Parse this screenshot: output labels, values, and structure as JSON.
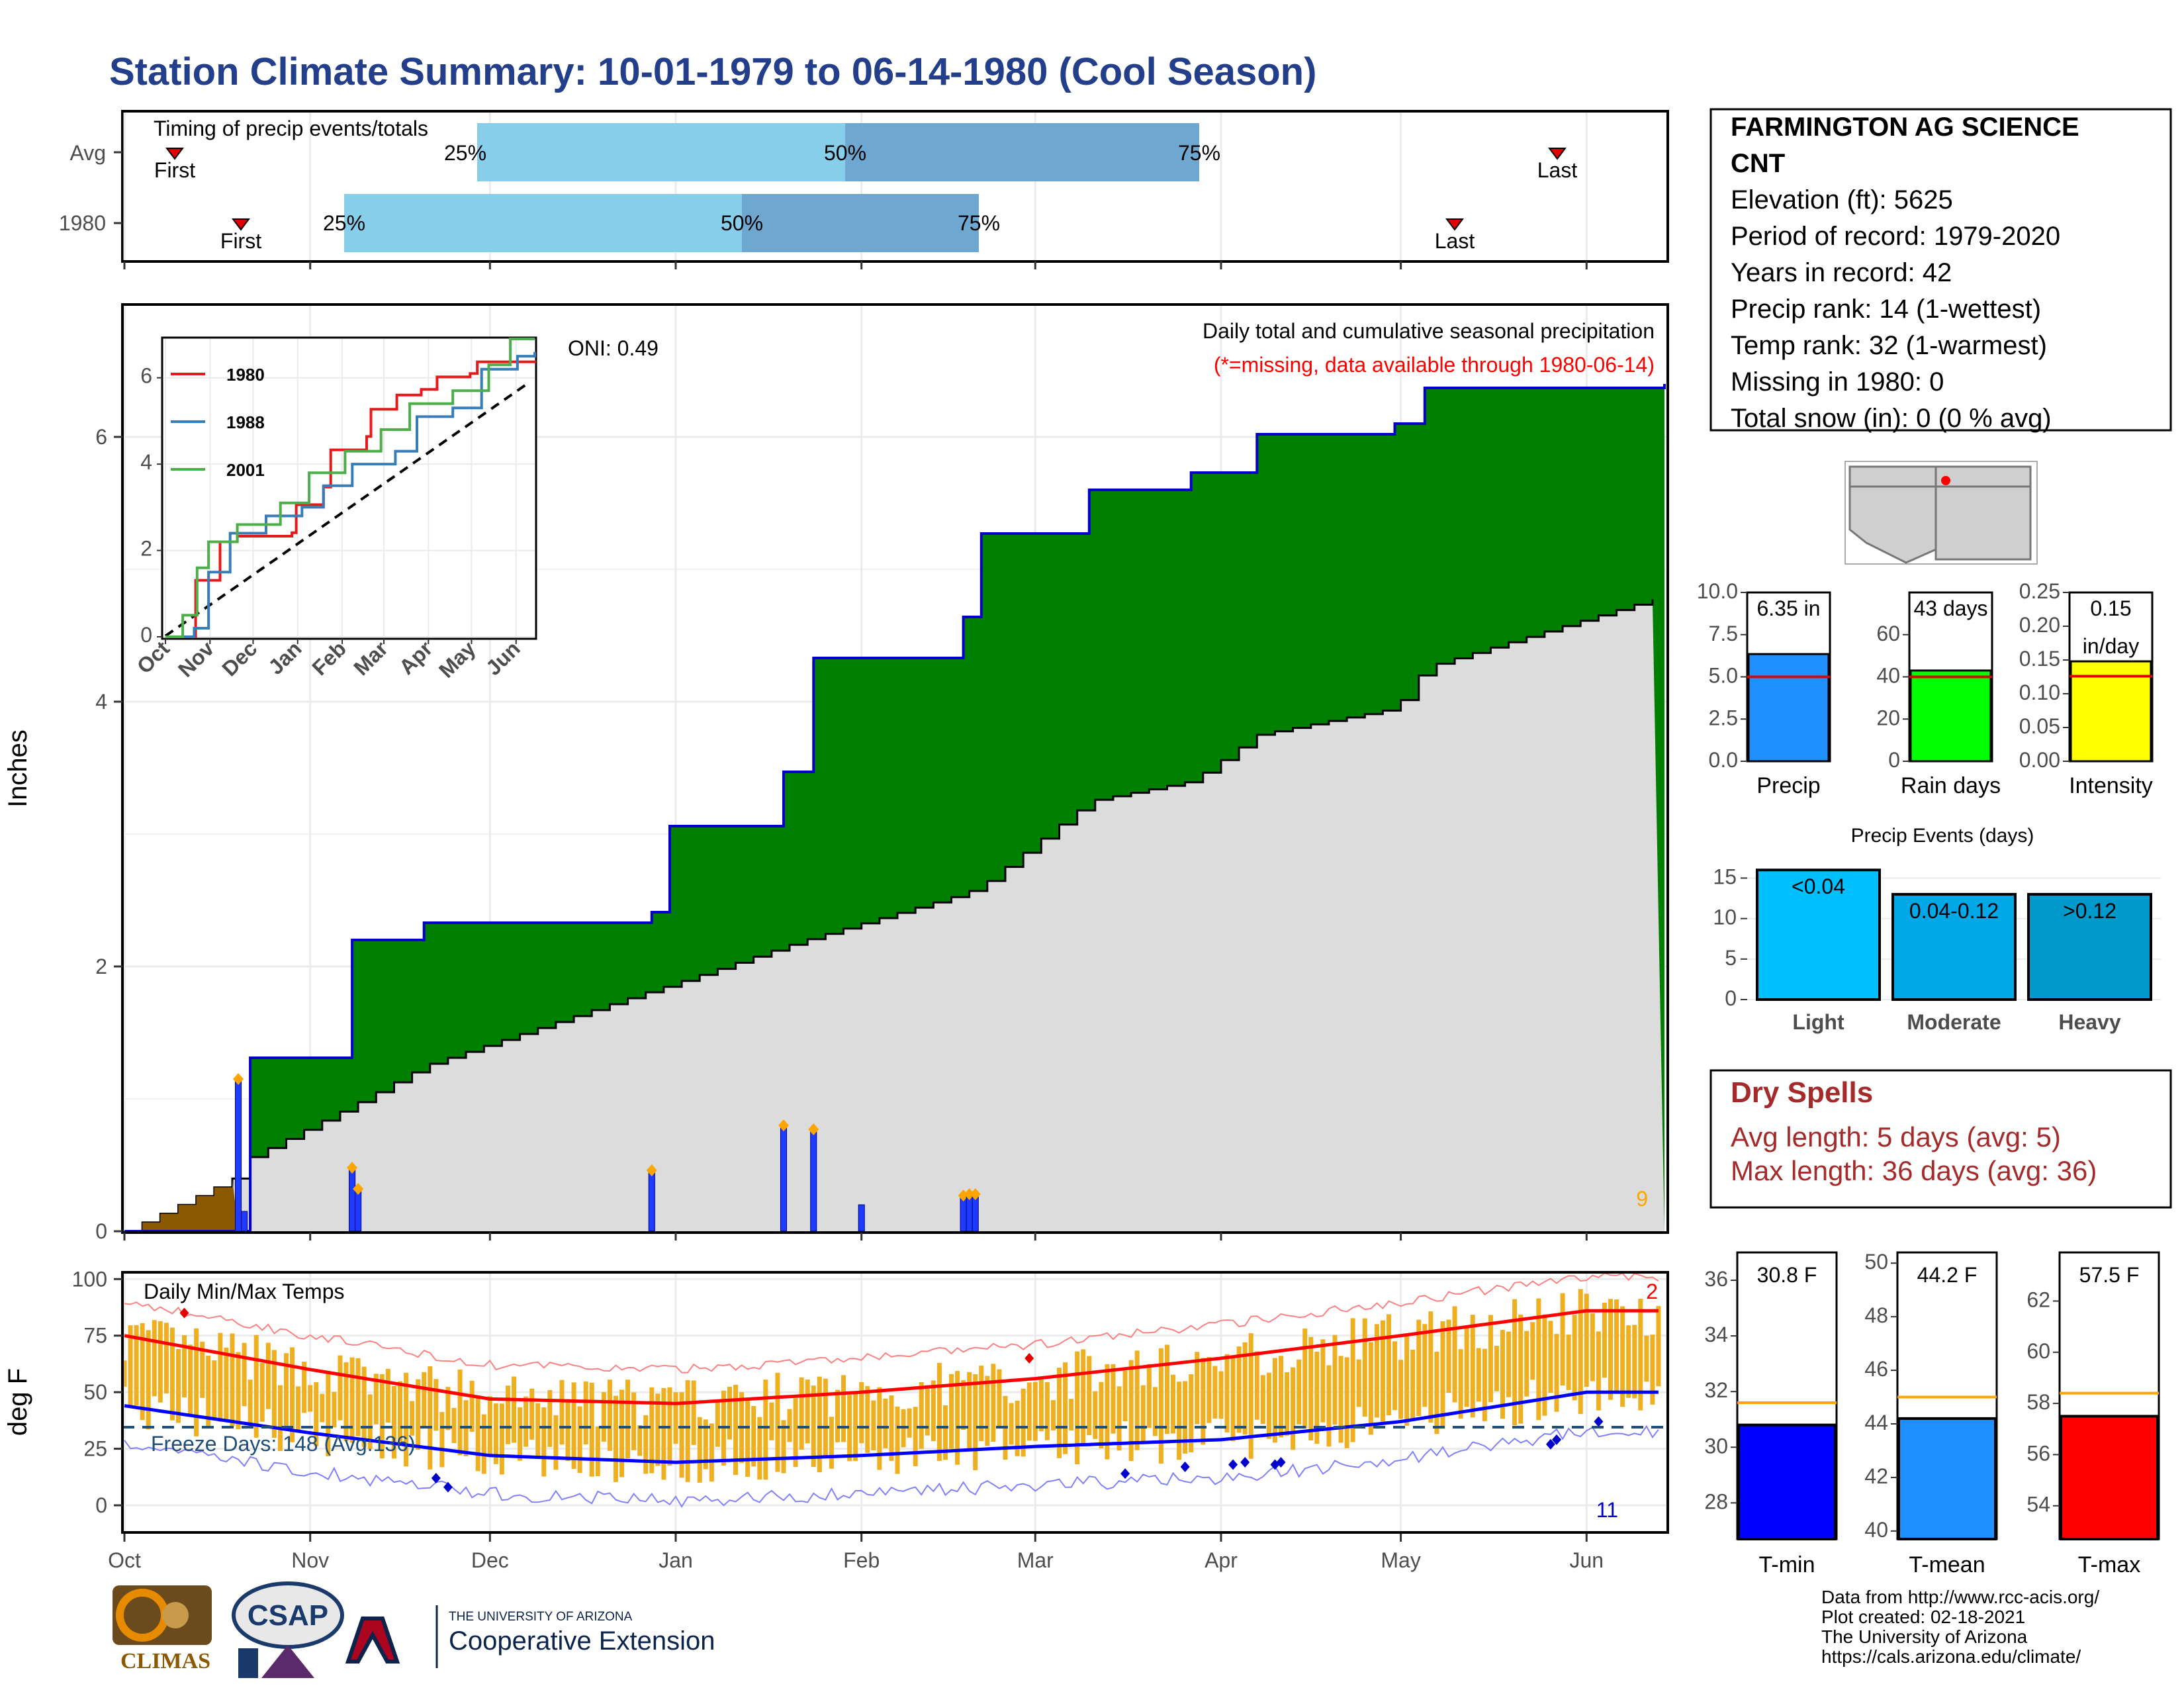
{
  "title": "Station Climate Summary: 10-01-1979 to 06-14-1980 (Cool Season)",
  "colors": {
    "title": "#233e8b",
    "cumulative_fill": "#008000",
    "cumulative_line": "#0000cd",
    "avg_fill": "#dcdcdc",
    "brown": "#8b5a00",
    "daily_bar": "#1e3cff",
    "marker": "#ffa500",
    "q1": "#87ceeb",
    "q2": "#6ea7d0",
    "temp_bar": "#eeb020",
    "tmax_line": "#ff0000",
    "tmin_line": "#0000ff"
  },
  "months": [
    "Oct",
    "Nov",
    "Dec",
    "Jan",
    "Feb",
    "Mar",
    "Apr",
    "May",
    "Jun"
  ],
  "timing": {
    "label": "Timing of precip events/totals",
    "rows": [
      {
        "year": "Avg",
        "q25": "25%",
        "q50": "50%",
        "q75": "75%",
        "first": "First",
        "last": "Last"
      },
      {
        "year": "1980",
        "q25": "25%",
        "q50": "50%",
        "q75": "75%",
        "first": "First",
        "last": "Last"
      }
    ]
  },
  "main": {
    "ylabel": "Inches",
    "oni": "ONI: 0.49",
    "caption1": "Daily total and cumulative seasonal precipitation",
    "caption2": "(*=missing, data available through 1980-06-14)",
    "count_label": "9",
    "yticks": [
      "0",
      "2",
      "4",
      "6"
    ]
  },
  "inset": {
    "legend": [
      "1980",
      "1988",
      "2001"
    ],
    "legend_colors": [
      "#e41a1c",
      "#377eb8",
      "#4daf4a"
    ],
    "yticks": [
      "0",
      "2",
      "4",
      "6"
    ],
    "months": [
      "Oct",
      "Nov",
      "Dec",
      "Jan",
      "Feb",
      "Mar",
      "Apr",
      "May",
      "Jun"
    ]
  },
  "temps": {
    "label": "Daily Min/Max Temps",
    "ylabel": "deg F",
    "freeze": "Freeze Days: 148 (Avg:136)",
    "count_high": "2",
    "count_low": "11",
    "yticks": [
      "0",
      "25",
      "50",
      "75",
      "100"
    ]
  },
  "station": {
    "name1": "FARMINGTON AG SCIENCE",
    "name2": "CNT",
    "lines": [
      "Elevation (ft): 5625",
      "Period of record: 1979-2020",
      "Years in record: 42",
      "Precip rank: 14 (1-wettest)",
      "Temp rank: 32 (1-warmest)",
      "Missing in 1980: 0",
      "Total snow (in): 0 (0 % avg)"
    ]
  },
  "stats": [
    {
      "label": "Precip",
      "value": "6.35 in",
      "ticks": [
        "0.0",
        "2.5",
        "5.0",
        "7.5",
        "10.0"
      ],
      "max": 10,
      "val": 6.35,
      "avg": 5.0,
      "color": "#1e90ff"
    },
    {
      "label": "Rain days",
      "value": "43 days",
      "ticks": [
        "0",
        "20",
        "40",
        "60"
      ],
      "max": 80,
      "val": 43,
      "avg": 40,
      "color": "#00ff00"
    },
    {
      "label": "Intensity",
      "value": "0.15",
      "value2": "in/day",
      "ticks": [
        "0.00",
        "0.05",
        "0.10",
        "0.15",
        "0.20",
        "0.25"
      ],
      "max": 0.25,
      "val": 0.148,
      "avg": 0.126,
      "color": "#ffff00"
    }
  ],
  "events": {
    "title": "Precip Events (days)",
    "ticks": [
      "0",
      "5",
      "10",
      "15"
    ],
    "bars": [
      {
        "name": "Light",
        "range": "<0.04",
        "value": 16,
        "color": "#00bfff"
      },
      {
        "name": "Moderate",
        "range": "0.04-0.12",
        "value": 13,
        "color": "#00a8e8"
      },
      {
        "name": "Heavy",
        "range": ">0.12",
        "value": 13,
        "color": "#0099cc"
      }
    ]
  },
  "dry_spells": {
    "title": "Dry Spells",
    "avg": "Avg length: 5 days (avg: 5)",
    "max": "Max length: 36 days (avg: 36)"
  },
  "temp_stats": [
    {
      "label": "T-min",
      "value": "30.8 F",
      "ticks": [
        "28",
        "30",
        "32",
        "34",
        "36"
      ],
      "min": 26.7,
      "max": 37,
      "val": 30.8,
      "avg": 31.6,
      "color": "#0000ff"
    },
    {
      "label": "T-mean",
      "value": "44.2 F",
      "ticks": [
        "40",
        "42",
        "44",
        "46",
        "48",
        "50"
      ],
      "min": 39.7,
      "max": 50.4,
      "val": 44.2,
      "avg": 45.0,
      "color": "#1e90ff"
    },
    {
      "label": "T-max",
      "value": "57.5 F",
      "ticks": [
        "54",
        "56",
        "58",
        "60",
        "62"
      ],
      "min": 52.7,
      "max": 63.9,
      "val": 57.5,
      "avg": 58.4,
      "color": "#ff0000"
    }
  ],
  "footer": [
    "Data from http://www.rcc-acis.org/",
    "Plot created: 02-18-2021",
    "The University of Arizona",
    "https://cals.arizona.edu/climate/"
  ],
  "logos": {
    "climas": "CLIMAS",
    "csap": "CSAP",
    "ua_small": "THE UNIVERSITY OF ARIZONA",
    "ua_big": "Cooperative Extension"
  },
  "chart_data": [
    {
      "type": "area",
      "title": "Daily total and cumulative seasonal precipitation",
      "ylabel": "Inches",
      "ylim": [
        0,
        7
      ],
      "x": [
        "10-01",
        "10-20",
        "10-22",
        "11-08",
        "11-20",
        "12-28",
        "12-31",
        "01-19",
        "01-24",
        "02-18",
        "02-21",
        "03-10",
        "03-27",
        "04-07",
        "04-30",
        "05-05",
        "06-14"
      ],
      "series": [
        {
          "name": "1980",
          "values": [
            0,
            0,
            1.31,
            2.2,
            2.33,
            2.41,
            3.06,
            3.47,
            4.33,
            4.64,
            5.27,
            5.6,
            5.73,
            6.02,
            6.1,
            6.37,
            6.4
          ]
        },
        {
          "name": "Avg",
          "values": [
            0,
            0.42,
            0.56,
            0.95,
            1.25,
            1.82,
            1.86,
            2.15,
            2.22,
            2.55,
            2.61,
            3.25,
            3.4,
            3.75,
            3.95,
            4.26,
            4.8
          ]
        }
      ]
    },
    {
      "type": "bar",
      "title": "",
      "ylabel": "Inches",
      "categories": [
        "10-20",
        "10-21",
        "11-08",
        "11-09",
        "12-28",
        "01-19",
        "01-24",
        "02-01",
        "02-18",
        "02-19",
        "02-20"
      ],
      "values": [
        1.15,
        0.15,
        0.48,
        0.32,
        0.46,
        0.8,
        0.77,
        0.2,
        0.27,
        0.28,
        0.28
      ]
    },
    {
      "type": "line",
      "title": "Daily Min/Max Temps",
      "ylabel": "deg F",
      "ylim": [
        -10,
        100
      ],
      "x": [
        "Oct",
        "Nov",
        "Dec",
        "Jan",
        "Feb",
        "Mar",
        "Apr",
        "May",
        "Jun"
      ],
      "series": [
        {
          "name": "",
          "values": [
            75,
            60,
            47,
            45,
            50,
            56,
            65,
            75,
            86
          ]
        },
        {
          "name": "",
          "values": [
            44,
            32,
            22,
            19,
            22,
            26,
            29,
            37,
            50
          ]
        }
      ]
    }
  ]
}
